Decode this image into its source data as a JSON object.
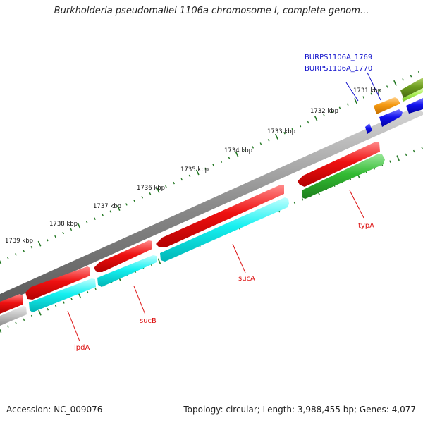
{
  "map": {
    "title": "Burkholderia pseudomallei 1106a chromosome I, complete genom...",
    "accession": "Accession: NC_009076",
    "summary": "Topology: circular; Length: 3,988,455 bp; Genes: 4,077"
  },
  "scale_labels": [
    "1731 kbp",
    "1732 kbp",
    "1733 kbp",
    "1734 kbp",
    "1735 kbp",
    "1736 kbp",
    "1737 kbp",
    "1738 kbp",
    "1739 kbp"
  ],
  "gene_labels": [
    "BURPS1106A_1769",
    "BURPS1106A_1770",
    "typA",
    "sucA",
    "sucB",
    "lpdA"
  ],
  "colors": {
    "backbone": "#8a8a8a",
    "cds_forward": "#ee1111",
    "cds_reverse_cyan": "#16f0f0",
    "cds_green": "#33bb33",
    "cds_grey": "#bbbbbb",
    "cds_orange": "#f59a12",
    "cds_blue": "#1111ee",
    "cds_olive": "#6e9e20",
    "cds_lightgreen": "#aaee55",
    "tick_minor": "#227722",
    "label_red": "#dd1111",
    "label_blue": "#1111cc"
  }
}
